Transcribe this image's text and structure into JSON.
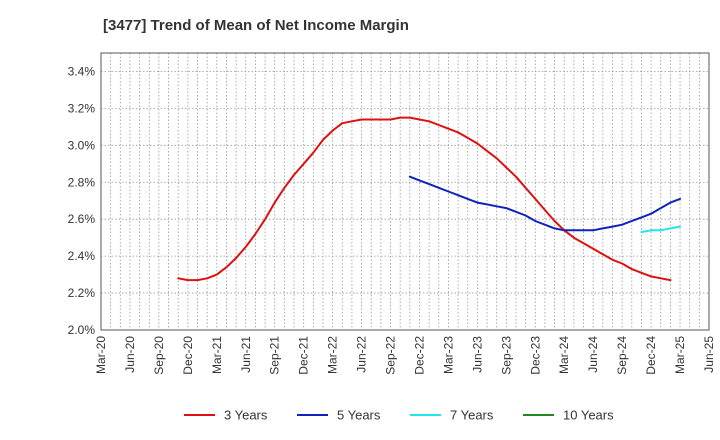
{
  "chart_data": {
    "type": "line",
    "title": "[3477]  Trend of Mean of Net Income Margin",
    "xlabel": "",
    "ylabel": "",
    "x_ticks": [
      "Mar-20",
      "Jun-20",
      "Sep-20",
      "Dec-20",
      "Mar-21",
      "Jun-21",
      "Sep-21",
      "Dec-21",
      "Mar-22",
      "Jun-22",
      "Sep-22",
      "Dec-22",
      "Mar-23",
      "Jun-23",
      "Sep-23",
      "Dec-23",
      "Mar-24",
      "Jun-24",
      "Sep-24",
      "Dec-24",
      "Mar-25",
      "Jun-25"
    ],
    "y_ticks": [
      "2.0%",
      "2.2%",
      "2.4%",
      "2.6%",
      "2.8%",
      "3.0%",
      "3.2%",
      "3.4%"
    ],
    "ylim": [
      2.0,
      3.5
    ],
    "grid": true,
    "legend_position": "bottom",
    "series": [
      {
        "name": "3 Years",
        "color": "#dd1111",
        "points": [
          [
            "Nov-20",
            2.28
          ],
          [
            "Dec-20",
            2.27
          ],
          [
            "Jan-21",
            2.27
          ],
          [
            "Feb-21",
            2.28
          ],
          [
            "Mar-21",
            2.3
          ],
          [
            "Apr-21",
            2.34
          ],
          [
            "May-21",
            2.39
          ],
          [
            "Jun-21",
            2.45
          ],
          [
            "Jul-21",
            2.52
          ],
          [
            "Aug-21",
            2.6
          ],
          [
            "Sep-21",
            2.69
          ],
          [
            "Oct-21",
            2.77
          ],
          [
            "Nov-21",
            2.84
          ],
          [
            "Dec-21",
            2.9
          ],
          [
            "Jan-22",
            2.96
          ],
          [
            "Feb-22",
            3.03
          ],
          [
            "Mar-22",
            3.08
          ],
          [
            "Apr-22",
            3.12
          ],
          [
            "May-22",
            3.13
          ],
          [
            "Jun-22",
            3.14
          ],
          [
            "Jul-22",
            3.14
          ],
          [
            "Aug-22",
            3.14
          ],
          [
            "Sep-22",
            3.14
          ],
          [
            "Oct-22",
            3.15
          ],
          [
            "Nov-22",
            3.15
          ],
          [
            "Dec-22",
            3.14
          ],
          [
            "Jan-23",
            3.13
          ],
          [
            "Feb-23",
            3.11
          ],
          [
            "Mar-23",
            3.09
          ],
          [
            "Apr-23",
            3.07
          ],
          [
            "May-23",
            3.04
          ],
          [
            "Jun-23",
            3.01
          ],
          [
            "Jul-23",
            2.97
          ],
          [
            "Aug-23",
            2.93
          ],
          [
            "Sep-23",
            2.88
          ],
          [
            "Oct-23",
            2.83
          ],
          [
            "Nov-23",
            2.77
          ],
          [
            "Dec-23",
            2.71
          ],
          [
            "Jan-24",
            2.65
          ],
          [
            "Feb-24",
            2.59
          ],
          [
            "Mar-24",
            2.54
          ],
          [
            "Apr-24",
            2.5
          ],
          [
            "May-24",
            2.47
          ],
          [
            "Jun-24",
            2.44
          ],
          [
            "Jul-24",
            2.41
          ],
          [
            "Aug-24",
            2.38
          ],
          [
            "Sep-24",
            2.36
          ],
          [
            "Oct-24",
            2.33
          ],
          [
            "Nov-24",
            2.31
          ],
          [
            "Dec-24",
            2.29
          ],
          [
            "Jan-25",
            2.28
          ],
          [
            "Feb-25",
            2.27
          ]
        ]
      },
      {
        "name": "5 Years",
        "color": "#1122bb",
        "points": [
          [
            "Nov-22",
            2.83
          ],
          [
            "Dec-22",
            2.81
          ],
          [
            "Jan-23",
            2.79
          ],
          [
            "Feb-23",
            2.77
          ],
          [
            "Mar-23",
            2.75
          ],
          [
            "Apr-23",
            2.73
          ],
          [
            "May-23",
            2.71
          ],
          [
            "Jun-23",
            2.69
          ],
          [
            "Jul-23",
            2.68
          ],
          [
            "Aug-23",
            2.67
          ],
          [
            "Sep-23",
            2.66
          ],
          [
            "Oct-23",
            2.64
          ],
          [
            "Nov-23",
            2.62
          ],
          [
            "Dec-23",
            2.59
          ],
          [
            "Jan-24",
            2.57
          ],
          [
            "Feb-24",
            2.55
          ],
          [
            "Mar-24",
            2.54
          ],
          [
            "Apr-24",
            2.54
          ],
          [
            "May-24",
            2.54
          ],
          [
            "Jun-24",
            2.54
          ],
          [
            "Jul-24",
            2.55
          ],
          [
            "Aug-24",
            2.56
          ],
          [
            "Sep-24",
            2.57
          ],
          [
            "Oct-24",
            2.59
          ],
          [
            "Nov-24",
            2.61
          ],
          [
            "Dec-24",
            2.63
          ],
          [
            "Jan-25",
            2.66
          ],
          [
            "Feb-25",
            2.69
          ],
          [
            "Mar-25",
            2.71
          ]
        ]
      },
      {
        "name": "7 Years",
        "color": "#22e5ee",
        "points": [
          [
            "Nov-24",
            2.53
          ],
          [
            "Dec-24",
            2.54
          ],
          [
            "Jan-25",
            2.54
          ],
          [
            "Feb-25",
            2.55
          ],
          [
            "Mar-25",
            2.56
          ]
        ]
      },
      {
        "name": "10 Years",
        "color": "#228822",
        "points": []
      }
    ]
  }
}
